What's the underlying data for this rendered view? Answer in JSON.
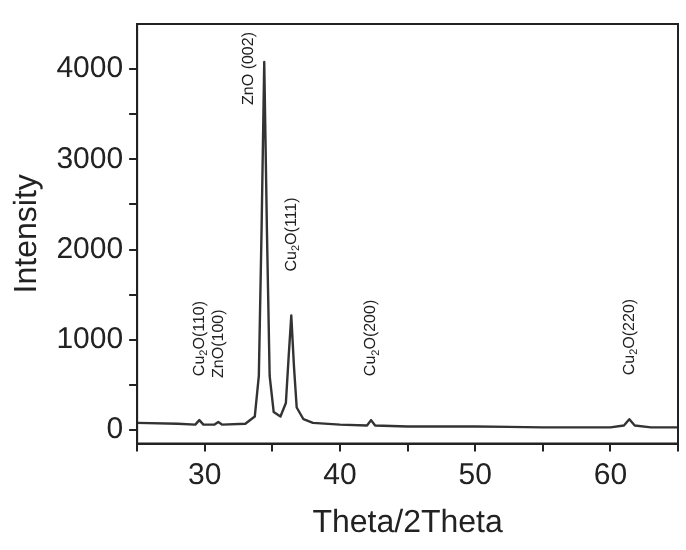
{
  "chart_data": {
    "type": "line",
    "xlabel": "Theta/2Theta",
    "ylabel": "Intensity",
    "x": [
      25,
      28,
      29.3,
      29.6,
      29.9,
      30.7,
      31.0,
      31.3,
      33.0,
      33.7,
      34.0,
      34.2,
      34.4,
      34.6,
      34.8,
      35.1,
      35.6,
      36.0,
      36.2,
      36.4,
      36.6,
      36.8,
      37.3,
      38,
      40,
      42.0,
      42.3,
      42.6,
      45,
      50,
      55,
      60,
      61.0,
      61.4,
      61.8,
      63,
      65
    ],
    "series": [
      {
        "color": "#333333",
        "values": [
          80,
          70,
          60,
          110,
          60,
          60,
          90,
          60,
          70,
          150,
          600,
          2200,
          4080,
          2200,
          600,
          200,
          150,
          300,
          800,
          1270,
          700,
          250,
          120,
          80,
          60,
          50,
          110,
          50,
          40,
          40,
          30,
          30,
          50,
          120,
          50,
          30,
          30
        ]
      }
    ],
    "xlim": [
      25,
      65
    ],
    "ylim": [
      -150,
      4500
    ],
    "xticks": [
      {
        "value": 25,
        "label": null
      },
      30,
      {
        "value": 35,
        "label": null
      },
      40,
      {
        "value": 45,
        "label": null
      },
      50,
      {
        "value": 55,
        "label": null
      },
      60,
      {
        "value": 65,
        "label": null
      }
    ],
    "yticks": [
      0,
      {
        "value": 500,
        "label": null
      },
      1000,
      {
        "value": 1500,
        "label": null
      },
      2000,
      {
        "value": 2500,
        "label": null
      },
      3000,
      {
        "value": 3500,
        "label": null
      },
      4000
    ],
    "grid": false,
    "legend": false,
    "marker": "none",
    "line_style": "solid",
    "annotations": [
      {
        "text": "Cu$_{2}$O(110)",
        "x": 29.6,
        "y": 110
      },
      {
        "text": "ZnO(100)",
        "x": 31.0,
        "y": 90
      },
      {
        "text": "ZnO (002)",
        "x": 34.4,
        "y": 4080
      },
      {
        "text": "Cu$_{2}$O(111)",
        "x": 36.4,
        "y": 1270
      },
      {
        "text": "Cu$_{2}$O(200)",
        "x": 42.3,
        "y": 110
      },
      {
        "text": "Cu$_{2}$O(220)",
        "x": 61.4,
        "y": 120
      }
    ]
  }
}
